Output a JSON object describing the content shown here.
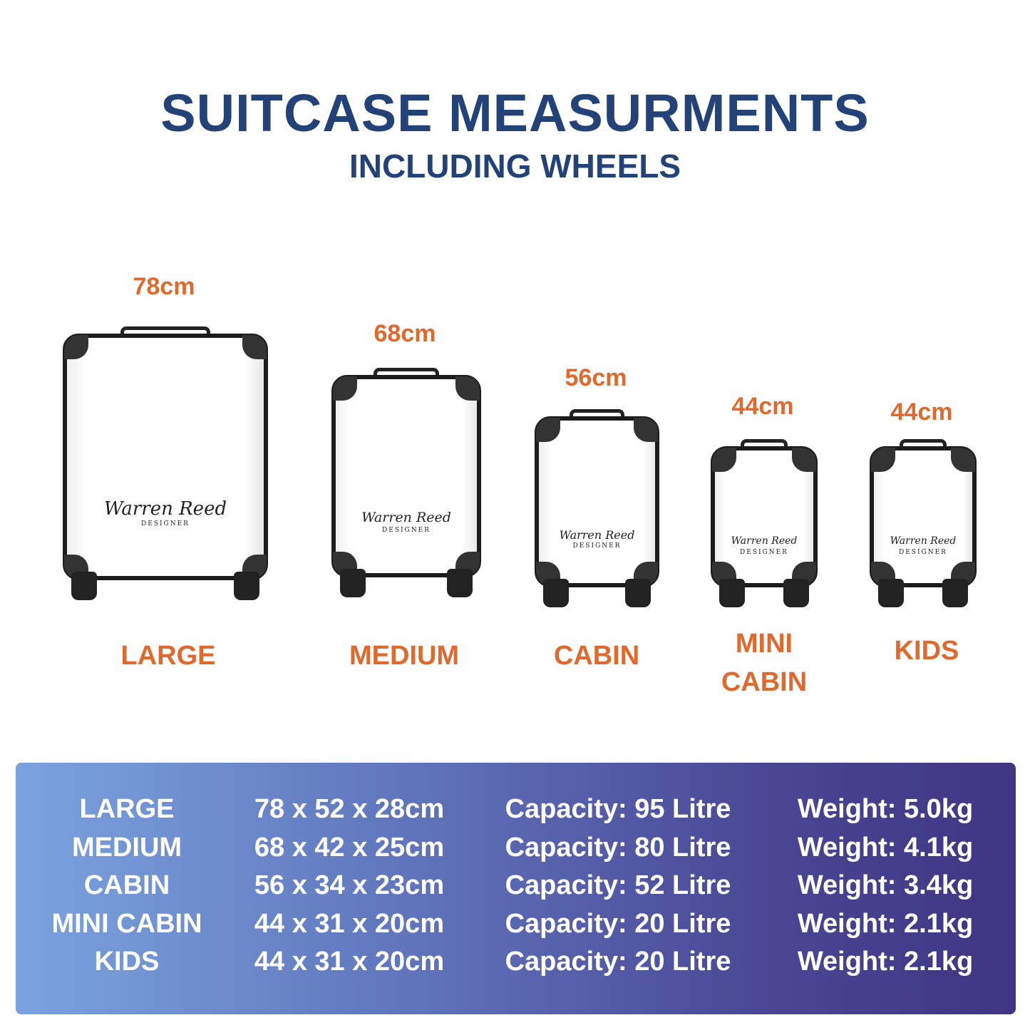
{
  "header": {
    "title": "SUITCASE MEASURMENTS",
    "subtitle": "INCLUDING WHEELS"
  },
  "brand_logo": {
    "name": "Warren Reed",
    "tag": "DESIGNER"
  },
  "colors": {
    "title": "#234378",
    "accent": "#e0692e",
    "table_start": "#7ba3df",
    "table_end": "#3f3582"
  },
  "suitcases": [
    {
      "height": "78cm",
      "name": "LARGE"
    },
    {
      "height": "68cm",
      "name": "MEDIUM"
    },
    {
      "height": "56cm",
      "name": "CABIN"
    },
    {
      "height": "44cm",
      "name_line1": "MINI",
      "name_line2": "CABIN"
    },
    {
      "height": "44cm",
      "name": "KIDS"
    }
  ],
  "table": {
    "rows": [
      {
        "size": "LARGE",
        "dims": "78 x 52 x 28cm",
        "capacity": "Capacity: 95 Litre",
        "weight": "Weight: 5.0kg"
      },
      {
        "size": "MEDIUM",
        "dims": "68 x 42 x 25cm",
        "capacity": "Capacity: 80 Litre",
        "weight": "Weight: 4.1kg"
      },
      {
        "size": "CABIN",
        "dims": "56 x 34 x 23cm",
        "capacity": "Capacity: 52 Litre",
        "weight": "Weight: 3.4kg"
      },
      {
        "size": "MINI CABIN",
        "dims": "44 x 31 x 20cm",
        "capacity": "Capacity: 20 Litre",
        "weight": "Weight: 2.1kg"
      },
      {
        "size": "KIDS",
        "dims": "44 x 31 x 20cm",
        "capacity": "Capacity: 20 Litre",
        "weight": "Weight: 2.1kg"
      }
    ]
  }
}
